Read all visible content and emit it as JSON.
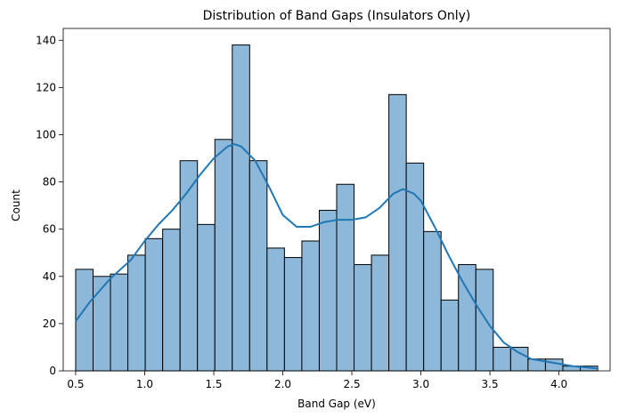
{
  "chart_data": {
    "type": "bar",
    "title": "Distribution of Band Gaps (Insulators Only)",
    "xlabel": "Band Gap (eV)",
    "ylabel": "Count",
    "xlim": [
      0.41,
      4.37
    ],
    "ylim": [
      0,
      145.0
    ],
    "x_ticks": [
      "0.5",
      "1.0",
      "1.5",
      "2.0",
      "2.5",
      "3.0",
      "3.5",
      "4.0"
    ],
    "x_tick_values": [
      0.5,
      1.0,
      1.5,
      2.0,
      2.5,
      3.0,
      3.5,
      4.0
    ],
    "y_ticks": [
      "0",
      "20",
      "40",
      "60",
      "80",
      "100",
      "120",
      "140"
    ],
    "y_tick_values": [
      0,
      20,
      40,
      60,
      80,
      100,
      120,
      140
    ],
    "bin_edges": [
      0.5,
      0.626,
      0.752,
      0.878,
      1.004,
      1.13,
      1.256,
      1.382,
      1.508,
      1.634,
      1.76,
      1.886,
      2.012,
      2.138,
      2.264,
      2.39,
      2.516,
      2.642,
      2.768,
      2.894,
      3.02,
      3.146,
      3.272,
      3.398,
      3.524,
      3.65,
      3.776,
      3.902,
      4.028,
      4.154,
      4.28
    ],
    "values": [
      43,
      40,
      41,
      49,
      56,
      60,
      89,
      62,
      98,
      138,
      89,
      52,
      48,
      55,
      68,
      79,
      45,
      49,
      117,
      88,
      59,
      30,
      45,
      43,
      10,
      10,
      5,
      5,
      2,
      2
    ],
    "bar_fill": "#8db8d9",
    "bar_edge": "#000000",
    "kde": {
      "color": "#1f77b4",
      "x": [
        0.5,
        0.6,
        0.75,
        0.9,
        1.0,
        1.1,
        1.2,
        1.3,
        1.4,
        1.5,
        1.6,
        1.65,
        1.7,
        1.8,
        1.9,
        2.0,
        2.1,
        2.2,
        2.3,
        2.4,
        2.5,
        2.6,
        2.7,
        2.8,
        2.87,
        2.95,
        3.0,
        3.1,
        3.2,
        3.3,
        3.4,
        3.5,
        3.6,
        3.7,
        3.8,
        3.9,
        4.0,
        4.1,
        4.28
      ],
      "y": [
        21,
        29,
        39,
        47,
        55,
        62,
        68,
        75,
        83,
        90,
        95,
        96,
        95,
        89,
        78,
        66,
        61,
        61,
        63,
        64,
        64,
        65,
        69,
        75,
        77,
        75,
        72,
        61,
        49,
        38,
        28,
        19,
        12,
        8,
        5,
        4,
        3,
        2,
        1
      ]
    },
    "grid": false,
    "legend": "none"
  }
}
